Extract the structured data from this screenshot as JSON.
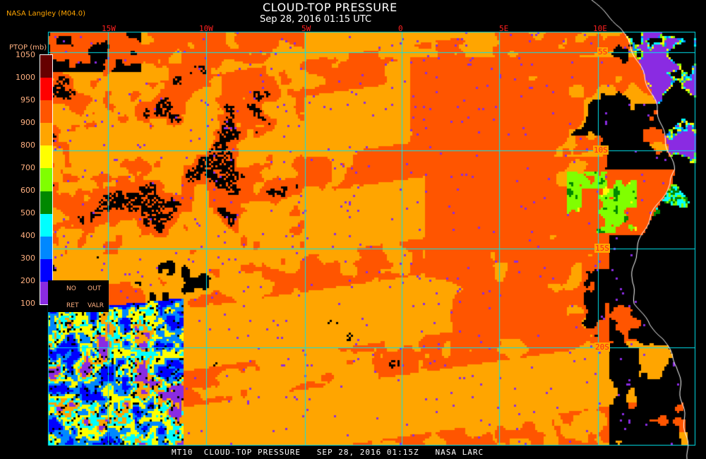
{
  "header": {
    "title": "CLOUD-TOP PRESSURE",
    "datetime": "Sep 28, 2016 01:15 UTC",
    "org": "NASA Langley (M04.0)"
  },
  "map": {
    "longitude_labels": [
      "15W",
      "10W",
      "5W",
      "0",
      "5E",
      "10E"
    ],
    "latitude_labels": [
      "5S",
      "10S",
      "15S",
      "20S"
    ],
    "grid_color": "#00e5ee",
    "coastline_color": "#ffffff"
  },
  "legend": {
    "title": "PTOP (mb)",
    "ticks": [
      "1050",
      "1000",
      "950",
      "900",
      "800",
      "700",
      "600",
      "500",
      "400",
      "300",
      "200",
      "100"
    ],
    "colors": [
      "#660000",
      "#ff0000",
      "#ff5500",
      "#ffa500",
      "#ffff00",
      "#80ff00",
      "#008800",
      "#00ffff",
      "#0088ff",
      "#0000ff",
      "#8a2be2"
    ],
    "no_retrieval": {
      "line1a": "NO",
      "line1b": "OUT",
      "line2a": "RET",
      "line2b": "VALR"
    }
  },
  "footer": {
    "caption": "MT10  CLOUD-TOP PRESSURE   SEP 28, 2016 01:15Z   NASA LARC"
  }
}
